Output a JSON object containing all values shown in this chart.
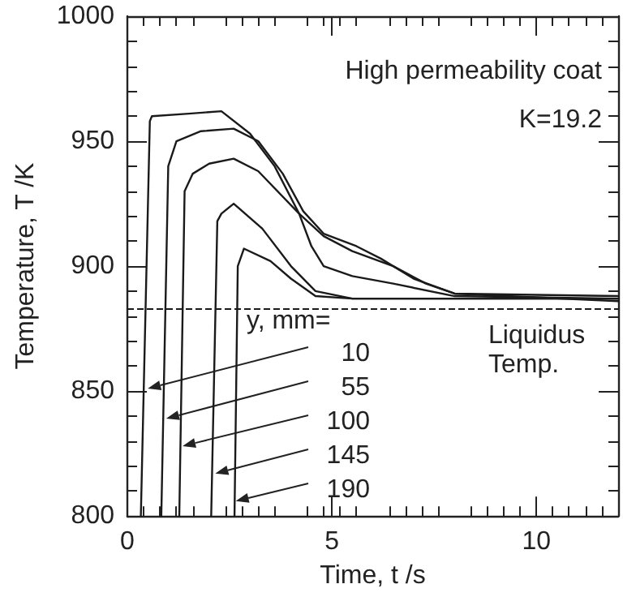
{
  "chart_data": {
    "type": "line",
    "xlabel": "Time, t /s",
    "ylabel": "Temperature, T /K",
    "xlim": [
      0,
      12
    ],
    "xticks": [
      0,
      5,
      10
    ],
    "ylim": [
      800,
      1000
    ],
    "yticks": [
      800,
      850,
      900,
      950,
      1000
    ],
    "grid": false,
    "marker": "none",
    "line_style": "solid",
    "series": [
      {
        "color": "#1a1a1a",
        "x": [
          0.33,
          0.55,
          0.6,
          1.5,
          2.3,
          3.0,
          3.6,
          4.2,
          4.5,
          4.8,
          5.5,
          6.5,
          8,
          12
        ],
        "values": [
          800,
          958,
          960,
          961,
          962,
          953,
          940,
          921,
          908,
          900,
          896,
          893,
          888,
          887
        ]
      },
      {
        "color": "#1a1a1a",
        "x": [
          0.83,
          1.0,
          1.2,
          1.8,
          2.6,
          3.2,
          3.8,
          4.3,
          4.8,
          5.6,
          6.2,
          7,
          8,
          12
        ],
        "values": [
          800,
          940,
          950,
          954,
          955,
          950,
          937,
          922,
          913,
          908,
          903,
          895,
          889,
          888
        ]
      },
      {
        "color": "#1a1a1a",
        "x": [
          1.27,
          1.4,
          1.6,
          2.0,
          2.6,
          3.2,
          4.2,
          4.8,
          5.5,
          6.5,
          7.3,
          8,
          12
        ],
        "values": [
          800,
          930,
          937,
          941,
          943,
          938,
          921,
          912,
          906,
          900,
          893,
          889,
          886
        ]
      },
      {
        "color": "#1a1a1a",
        "x": [
          2.05,
          2.2,
          2.3,
          2.6,
          3.3,
          4.0,
          4.6,
          5.5,
          12
        ],
        "values": [
          800,
          918,
          921,
          925,
          915,
          900,
          890,
          887,
          887
        ]
      },
      {
        "color": "#1a1a1a",
        "x": [
          2.62,
          2.7,
          2.85,
          3.5,
          4.0,
          4.6,
          5.5,
          12
        ],
        "values": [
          800,
          900,
          907,
          902,
          895,
          888,
          887,
          887
        ]
      }
    ],
    "ref_lines": [
      {
        "axis": "y",
        "value": 883,
        "label": "Liquidus Temp.",
        "color": "#1a1a1a",
        "line_style": "dashed"
      }
    ],
    "annotations": [
      "High permeability coat",
      "K=19.2",
      "y, mm=",
      {
        "text": "10",
        "x": 0.5,
        "y": 851
      },
      {
        "text": "55",
        "x": 0.95,
        "y": 839
      },
      {
        "text": "100",
        "x": 1.35,
        "y": 828
      },
      {
        "text": "145",
        "x": 2.15,
        "y": 817
      },
      {
        "text": "190",
        "x": 2.65,
        "y": 806
      }
    ]
  }
}
